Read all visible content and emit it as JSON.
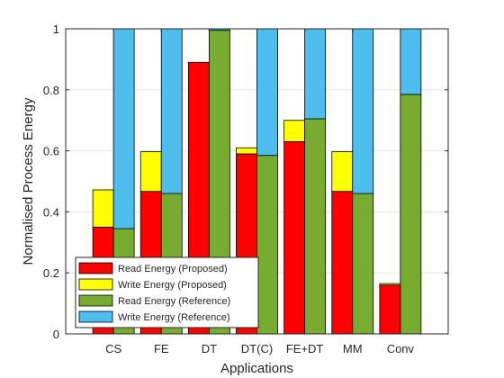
{
  "chart_data": {
    "type": "bar",
    "stacked": true,
    "grouped": true,
    "xlabel": "Applications",
    "ylabel": "Normalised Process Energy",
    "ylim": [
      0,
      1
    ],
    "yticks": [
      0,
      0.2,
      0.4,
      0.6,
      0.8,
      1
    ],
    "ytick_labels": [
      "0",
      "0.2",
      "0.4",
      "0.6",
      "0.8",
      "1"
    ],
    "grid": true,
    "legend_position": "bottom-left",
    "categories": [
      "CS",
      "FE",
      "DT",
      "DT(C)",
      "FE+DT",
      "MM",
      "Conv"
    ],
    "groups": [
      {
        "name": "Proposed",
        "series": [
          {
            "name": "Read Energy (Proposed)",
            "color": "#ff0000",
            "values": [
              0.35,
              0.467,
              0.89,
              0.59,
              0.63,
              0.467,
              0.16
            ]
          },
          {
            "name": "Write Energy (Proposed)",
            "color": "#ffff00",
            "values": [
              0.122,
              0.13,
              0.0,
              0.02,
              0.07,
              0.13,
              0.005
            ]
          }
        ]
      },
      {
        "name": "Reference",
        "series": [
          {
            "name": "Read Energy (Reference)",
            "color": "#77ac30",
            "values": [
              0.345,
              0.46,
              0.995,
              0.585,
              0.705,
              0.46,
              0.785
            ]
          },
          {
            "name": "Write Energy (Reference)",
            "color": "#4dbeee",
            "values": [
              0.655,
              0.54,
              0.005,
              0.415,
              0.295,
              0.54,
              0.215
            ]
          }
        ]
      }
    ]
  }
}
